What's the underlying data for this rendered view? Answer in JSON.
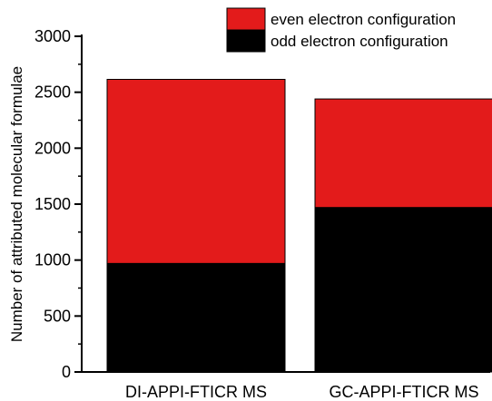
{
  "chart_data": {
    "type": "bar",
    "stacked": true,
    "categories": [
      "DI-APPI-FTICR MS",
      "GC-APPI-FTICR MS"
    ],
    "series": [
      {
        "name": "odd electron configuration",
        "color": "#000000",
        "values": [
          970,
          1470
        ]
      },
      {
        "name": "even electron configuration",
        "color": "#e31b1b",
        "values": [
          1645,
          970
        ]
      }
    ],
    "title": "",
    "xlabel": "",
    "ylabel": "Number of attributed molecular formulae",
    "ylim": [
      0,
      3000
    ],
    "yticks": [
      0,
      500,
      1000,
      1500,
      2000,
      2500,
      3000
    ],
    "yticks_minor": [
      250,
      750,
      1250,
      1750,
      2250,
      2750
    ],
    "grid": false,
    "legend_position": "top-right",
    "legend_order": [
      "even electron configuration",
      "odd electron configuration"
    ]
  }
}
